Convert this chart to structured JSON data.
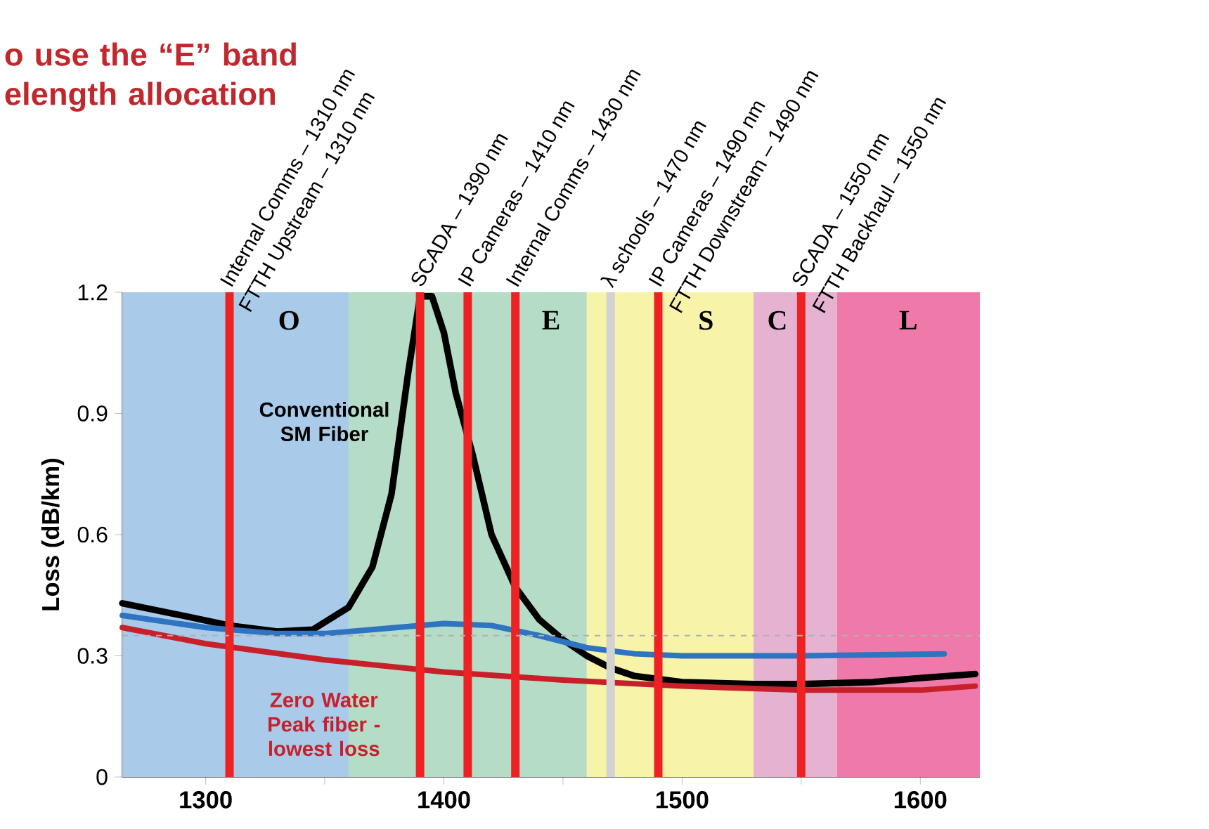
{
  "chart_data": {
    "type": "line",
    "title": "o use the “E” band elength allocation",
    "ylabel": "Loss (dB/km)",
    "xlim": [
      1265,
      1625
    ],
    "ylim": [
      0,
      1.2
    ],
    "xticks": [
      1300,
      {
        "value": 1350,
        "label": null
      },
      1400,
      {
        "value": 1450,
        "label": null
      },
      1500,
      {
        "value": 1550,
        "label": null
      },
      1600
    ],
    "yticks": [
      0,
      0.3,
      0.6,
      0.9,
      1.2
    ],
    "grid": false,
    "legend": false,
    "marker": "none",
    "line_style": "solid",
    "series": [
      {
        "color": "#000000",
        "x": [
          1265,
          1290,
          1310,
          1330,
          1345,
          1360,
          1370,
          1378,
          1385,
          1390,
          1395,
          1400,
          1405,
          1412,
          1420,
          1430,
          1440,
          1450,
          1460,
          1470,
          1480,
          1500,
          1530,
          1550,
          1580,
          1600,
          1623
        ],
        "values": [
          0.43,
          0.4,
          0.375,
          0.36,
          0.365,
          0.42,
          0.52,
          0.7,
          1.0,
          1.19,
          1.19,
          1.1,
          0.95,
          0.8,
          0.6,
          0.47,
          0.39,
          0.34,
          0.3,
          0.27,
          0.25,
          0.235,
          0.23,
          0.23,
          0.235,
          0.245,
          0.255
        ]
      },
      {
        "color": "#2f74c0",
        "x": [
          1265,
          1300,
          1330,
          1350,
          1380,
          1400,
          1420,
          1440,
          1460,
          1480,
          1500,
          1550,
          1610
        ],
        "values": [
          0.4,
          0.37,
          0.355,
          0.355,
          0.37,
          0.38,
          0.375,
          0.35,
          0.32,
          0.305,
          0.3,
          0.3,
          0.305
        ]
      },
      {
        "color": "#c8202a",
        "x": [
          1265,
          1300,
          1350,
          1400,
          1450,
          1500,
          1550,
          1600,
          1623
        ],
        "values": [
          0.37,
          0.33,
          0.29,
          0.26,
          0.24,
          0.225,
          0.215,
          0.215,
          0.225
        ]
      }
    ],
    "bands": [
      {
        "axis": "x",
        "from": 1265,
        "to": 1360,
        "label": "O",
        "color": "#a9cbe9"
      },
      {
        "axis": "x",
        "from": 1360,
        "to": 1460,
        "label": "E",
        "color": "#b5dcc6"
      },
      {
        "axis": "x",
        "from": 1460,
        "to": 1530,
        "label": "S",
        "color": "#f7f3a8"
      },
      {
        "axis": "x",
        "from": 1530,
        "to": 1565,
        "label": "C",
        "color": "#e6b2d2"
      },
      {
        "axis": "x",
        "from": 1565,
        "to": 1625,
        "label": "L",
        "color": "#ef7aaa"
      }
    ],
    "ref_lines": [
      {
        "axis": "x",
        "value": 1310,
        "label": "Internal Comms – 1310 nm",
        "color": "#ee2222"
      },
      {
        "axis": "x",
        "value": 1390,
        "label": "SCADA – 1390 nm",
        "color": "#ee2222"
      },
      {
        "axis": "x",
        "value": 1410,
        "label": "IP Cameras – 1410 nm",
        "color": "#ee2222"
      },
      {
        "axis": "x",
        "value": 1430,
        "label": "Internal Comms – 1430 nm",
        "color": "#ee2222"
      },
      {
        "axis": "x",
        "value": 1470,
        "label": "λ schools – 1470 nm",
        "color": "#d2d2d2"
      },
      {
        "axis": "x",
        "value": 1490,
        "label": "IP Cameras – 1490 nm",
        "color": "#ee2222"
      },
      {
        "axis": "x",
        "value": 1550,
        "label": "SCADA – 1550 nm",
        "color": "#ee2222"
      },
      {
        "axis": "y",
        "value": 0.35,
        "color": "#b0b0b0",
        "line_style": "dashed"
      }
    ],
    "annotations": [
      "Conventional SM Fiber",
      "Zero Water Peak fiber - lowest loss",
      {
        "text": "FTTH Upstream – 1310 nm",
        "x": 1310,
        "y": 1.2
      },
      {
        "text": "FTTH Downstream – 1490 nm",
        "x": 1490,
        "y": 1.2
      },
      {
        "text": "FTTH Backhaul – 1550 nm",
        "x": 1550,
        "y": 1.2
      }
    ]
  }
}
